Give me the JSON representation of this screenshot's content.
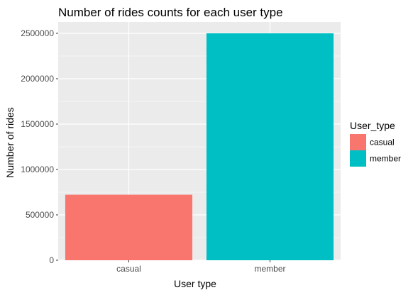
{
  "chart_data": {
    "type": "bar",
    "title": "Number of rides counts for each user type",
    "xlabel": "User type",
    "ylabel": "Number of rides",
    "categories": [
      "casual",
      "member"
    ],
    "values": [
      722000,
      2500000
    ],
    "colors": [
      "#F8766D",
      "#00BFC4"
    ],
    "ylim": [
      0,
      2625000
    ],
    "yticks": [
      0,
      500000,
      1000000,
      1500000,
      2000000,
      2500000
    ],
    "ytick_labels": [
      "0",
      "500000",
      "1000000",
      "1500000",
      "2000000",
      "2500000"
    ],
    "grid": true,
    "legend": {
      "title": "User_type",
      "placement": "right",
      "entries": [
        {
          "label": "casual",
          "color": "#F8766D"
        },
        {
          "label": "member",
          "color": "#00BFC4"
        }
      ]
    }
  }
}
